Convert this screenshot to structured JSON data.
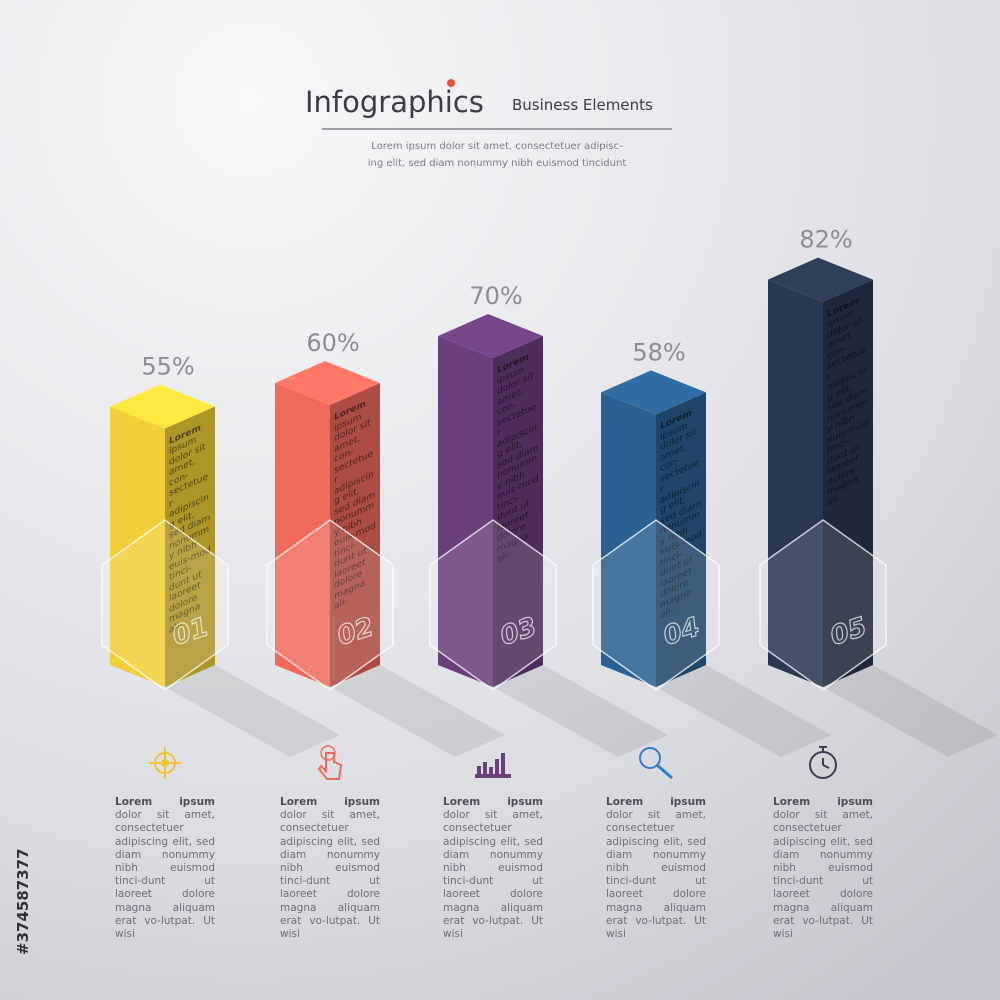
{
  "chart_data": {
    "type": "bar",
    "title": "Infographics",
    "subtitle": "Business Elements",
    "description": [
      "Lorem ipsum dolor sit amet, consectetuer adipisc-",
      "ing elit, sed diam nonummy nibh euismod tincidunt"
    ],
    "categories": [
      "01",
      "02",
      "03",
      "04",
      "05"
    ],
    "values": [
      55,
      60,
      70,
      58,
      82
    ],
    "value_labels": [
      "55%",
      "60%",
      "70%",
      "58%",
      "82%"
    ],
    "colors": [
      "#f2cf38",
      "#f06a5c",
      "#6b3f7c",
      "#2b6192",
      "#2a3850"
    ],
    "bar_notes": [
      "Lorem ipsum dolor sit amet, con-sectetuer adipiscing elit, sed diam nonummy nibh euis-mod tinci-dunt ut laoreet dolore magna ali-",
      "Lorem ipsum dolor sit amet, con-sectetuer adipiscing elit, sed diam nonummy nibh euis-mod tinci-dunt ut laoreet dolore magna ali-",
      "Lorem ipsum dolor sit amet, con-sectetuer adipiscing elit, sed diam nonummy nibh euis-mod tinci-dunt ut laoreet dolore magna ali-",
      "Lorem ipsum dolor sit amet, con-sectetuer adipiscing elit, sed diam nonummy nibh euis-mod tinci-dunt ut laoreet dolore magna ali-",
      "Lorem ipsum dolor sit amet, con-sectetuer adipiscing elit, sed diam nonummy nibh euis-mod tinci-dunt ut laoreet dolore magna ali-"
    ],
    "captions": [
      "Lorem ipsum dolor sit amet, consectetuer adipiscing elit, sed diam nonummy nibh euismod tinci-dunt ut laoreet dolore magna aliquam erat vo-lutpat. Ut wisi",
      "Lorem ipsum dolor sit amet, consectetuer adipiscing elit, sed diam nonummy nibh euismod tinci-dunt ut laoreet dolore magna aliquam erat vo-lutpat. Ut wisi",
      "Lorem ipsum dolor sit amet, consectetuer adipiscing elit, sed diam nonummy nibh euismod tinci-dunt ut laoreet dolore magna aliquam erat vo-lutpat. Ut wisi",
      "Lorem ipsum dolor sit amet, consectetuer adipiscing elit, sed diam nonummy nibh euismod tinci-dunt ut laoreet dolore magna aliquam erat vo-lutpat. Ut wisi",
      "Lorem ipsum dolor sit amet, consectetuer adipiscing elit, sed diam nonummy nibh euismod tinci-dunt ut laoreet dolore magna aliquam erat vo-lutpat. Ut wisi"
    ],
    "stock_id": "#374587377"
  }
}
